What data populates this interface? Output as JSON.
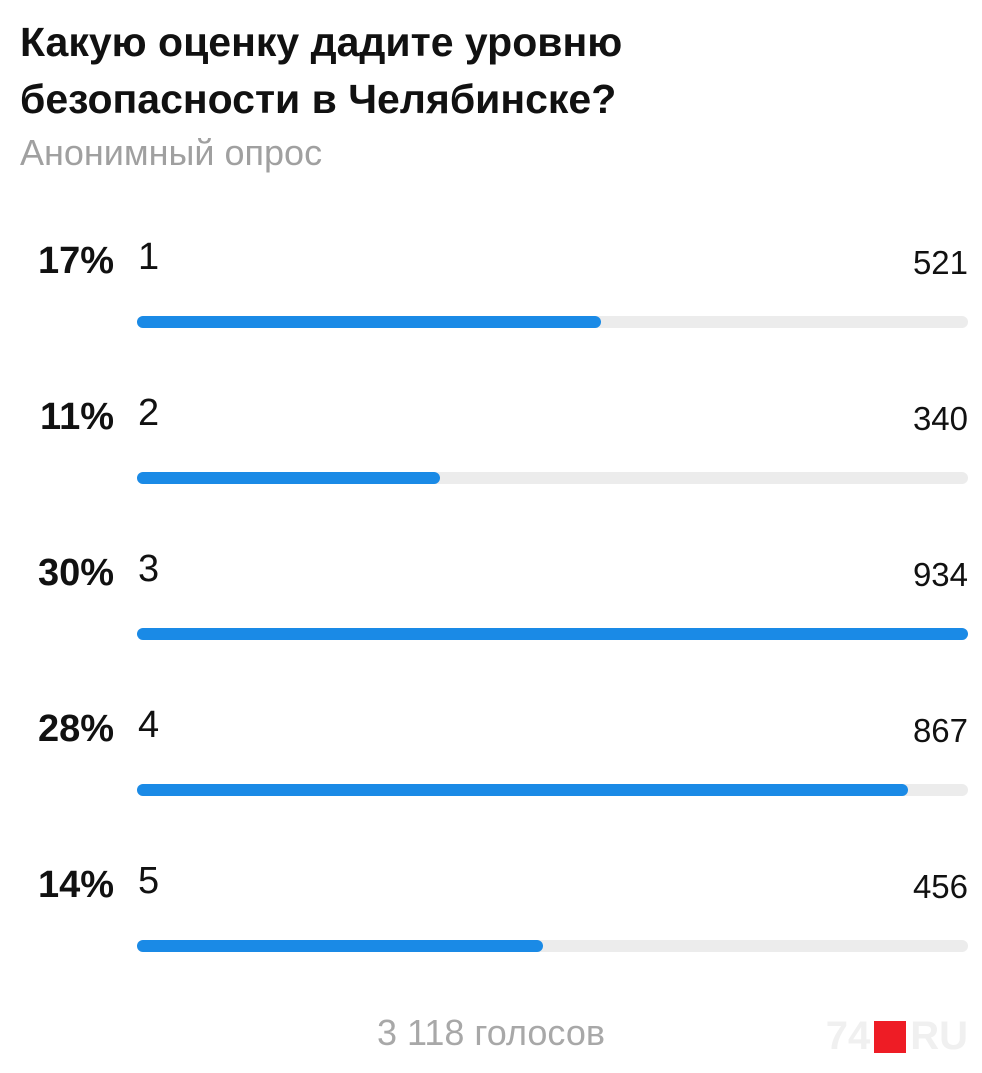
{
  "header": {
    "title": "Какую оценку дадите уровню безопасности в Челябинске?",
    "subtitle": "Анонимный опрос"
  },
  "options": [
    {
      "percent": "17%",
      "label": "1",
      "votes": 521
    },
    {
      "percent": "11%",
      "label": "2",
      "votes": 340
    },
    {
      "percent": "30%",
      "label": "3",
      "votes": 934
    },
    {
      "percent": "28%",
      "label": "4",
      "votes": 867
    },
    {
      "percent": "14%",
      "label": "5",
      "votes": 456
    }
  ],
  "footer": {
    "total": "3 118 голосов",
    "watermark_left": "74",
    "watermark_right": "RU"
  }
}
